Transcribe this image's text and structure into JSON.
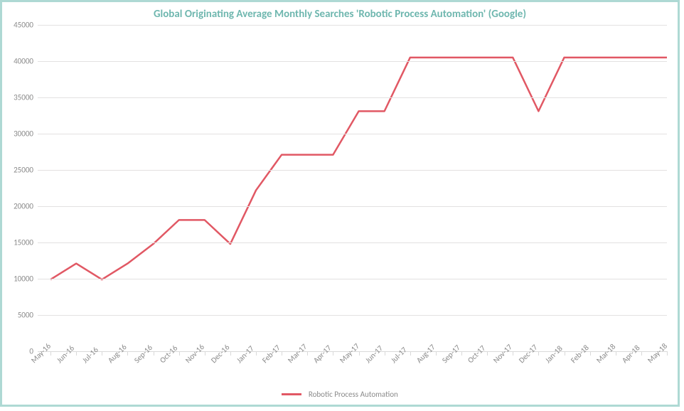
{
  "chart": {
    "type": "line",
    "title": "Global Originating Average Monthly Searches 'Robotic Process Automation' (Google)",
    "title_color": "#6fb7af",
    "title_fontsize": 15,
    "background_color": "#ffffff",
    "border_color": "#aed9d4",
    "border_width": 3,
    "plot": {
      "ylim": [
        0,
        45000
      ],
      "ytick_step": 5000,
      "yticks": [
        "0",
        "5000",
        "10000",
        "15000",
        "20000",
        "25000",
        "30000",
        "35000",
        "40000",
        "45000"
      ],
      "grid_color": "#e3e1e1",
      "axis_line_color": "#d9d9d9",
      "tick_label_color": "#8a8a8a",
      "tick_label_fontsize": 11,
      "x_label_rotation_deg": -45
    },
    "categories": [
      "May-16",
      "Jun-16",
      "Jul-16",
      "Aug-16",
      "Sep-16",
      "Oct-16",
      "Nov-16",
      "Dec-16",
      "Jan-17",
      "Feb-17",
      "Mar-17",
      "Apr-17",
      "May-17",
      "Jun-17",
      "Jul-17",
      "Aug-17",
      "Sep-17",
      "Oct-17",
      "Nov-17",
      "Dec-17",
      "Jan-18",
      "Feb-18",
      "Mar-18",
      "Apr-18",
      "May-18"
    ],
    "series": [
      {
        "name": "Robotic Process Automation",
        "color": "#e15864",
        "line_width": 2.5,
        "values": [
          9900,
          12100,
          9900,
          12100,
          14800,
          18100,
          18100,
          14800,
          22200,
          27100,
          27100,
          27100,
          33100,
          33100,
          40500,
          40500,
          40500,
          40500,
          40500,
          33100,
          40500,
          40500,
          40500,
          40500,
          40500
        ]
      }
    ],
    "legend": {
      "position": "bottom",
      "label_color": "#8a8a8a",
      "label_fontsize": 11,
      "swatch_width": 28,
      "swatch_height": 3
    }
  }
}
